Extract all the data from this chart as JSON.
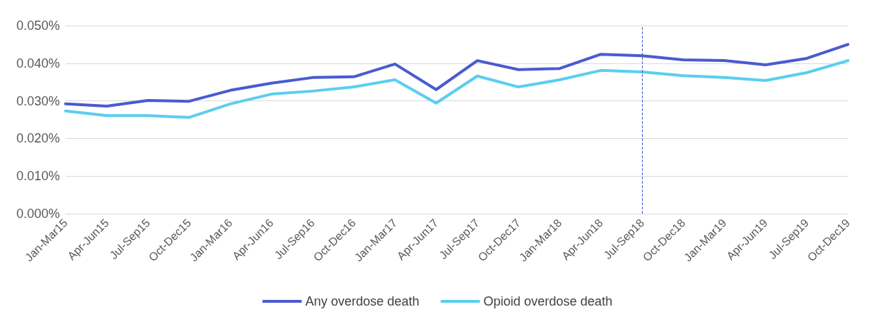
{
  "chart_data": {
    "type": "line",
    "categories": [
      "Jan-Mar15",
      "Apr-Jun15",
      "Jul-Sep15",
      "Oct-Dec15",
      "Jan-Mar16",
      "Apr-Jun16",
      "Jul-Sep16",
      "Oct-Dec16",
      "Jan-Mar17",
      "Apr-Jun17",
      "Jul-Sep17",
      "Oct-Dec17",
      "Jan-Mar18",
      "Apr-Jun18",
      "Jul-Sep18",
      "Oct-Dec18",
      "Jan-Mar19",
      "Apr-Jun19",
      "Jul-Sep19",
      "Oct-Dec19"
    ],
    "series": [
      {
        "name": "Any overdose death",
        "color": "#4a5bd0",
        "values": [
          0.0292,
          0.0286,
          0.0301,
          0.0299,
          0.0328,
          0.0347,
          0.0362,
          0.0364,
          0.0398,
          0.033,
          0.0407,
          0.0383,
          0.0386,
          0.0424,
          0.042,
          0.0409,
          0.0407,
          0.0396,
          0.0413,
          0.045
        ]
      },
      {
        "name": "Opioid overdose death",
        "color": "#5bcef0",
        "values": [
          0.0273,
          0.0261,
          0.0261,
          0.0256,
          0.0292,
          0.0318,
          0.0326,
          0.0337,
          0.0356,
          0.0294,
          0.0366,
          0.0337,
          0.0356,
          0.0381,
          0.0377,
          0.0367,
          0.0362,
          0.0354,
          0.0375,
          0.0407
        ]
      }
    ],
    "ylim": [
      0,
      0.05
    ],
    "yticks": [
      {
        "value": 0,
        "label": "0.000%"
      },
      {
        "value": 0.01,
        "label": "0.010%"
      },
      {
        "value": 0.02,
        "label": "0.020%"
      },
      {
        "value": 0.03,
        "label": "0.030%"
      },
      {
        "value": 0.04,
        "label": "0.040%"
      },
      {
        "value": 0.05,
        "label": "0.050%"
      }
    ],
    "ref_lines": [
      {
        "axis": "x",
        "value": "Jul-Sep18",
        "color": "#4a5bd0",
        "line_style": "dashed"
      }
    ],
    "grid": "y",
    "legend": "bottom",
    "marker": "none",
    "line_style": "solid"
  }
}
